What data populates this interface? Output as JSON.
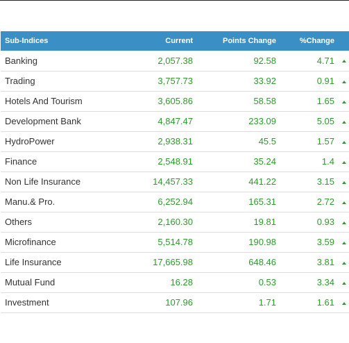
{
  "table": {
    "headers": {
      "name": "Sub-Indices",
      "current": "Current",
      "points": "Points Change",
      "pct": "%Change"
    },
    "up_color": "#2e9a2e",
    "header_bg": "#3a8fc4",
    "rows": [
      {
        "name": "Banking",
        "current": "2,057.38",
        "points": "92.58",
        "pct": "4.71",
        "direction": "up"
      },
      {
        "name": "Trading",
        "current": "3,757.73",
        "points": "33.92",
        "pct": "0.91",
        "direction": "up"
      },
      {
        "name": "Hotels And Tourism",
        "current": "3,605.86",
        "points": "58.58",
        "pct": "1.65",
        "direction": "up"
      },
      {
        "name": "Development Bank",
        "current": "4,847.47",
        "points": "233.09",
        "pct": "5.05",
        "direction": "up"
      },
      {
        "name": "HydroPower",
        "current": "2,938.31",
        "points": "45.5",
        "pct": "1.57",
        "direction": "up"
      },
      {
        "name": "Finance",
        "current": "2,548.91",
        "points": "35.24",
        "pct": "1.4",
        "direction": "up"
      },
      {
        "name": "Non Life Insurance",
        "current": "14,457.33",
        "points": "441.22",
        "pct": "3.15",
        "direction": "up"
      },
      {
        "name": "Manu.& Pro.",
        "current": "6,252.94",
        "points": "165.31",
        "pct": "2.72",
        "direction": "up"
      },
      {
        "name": "Others",
        "current": "2,160.30",
        "points": "19.81",
        "pct": "0.93",
        "direction": "up"
      },
      {
        "name": "Microfinance",
        "current": "5,514.78",
        "points": "190.98",
        "pct": "3.59",
        "direction": "up"
      },
      {
        "name": "Life Insurance",
        "current": "17,665.98",
        "points": "648.46",
        "pct": "3.81",
        "direction": "up"
      },
      {
        "name": "Mutual Fund",
        "current": "16.28",
        "points": "0.53",
        "pct": "3.34",
        "direction": "up"
      },
      {
        "name": "Investment",
        "current": "107.96",
        "points": "1.71",
        "pct": "1.61",
        "direction": "up"
      }
    ]
  }
}
